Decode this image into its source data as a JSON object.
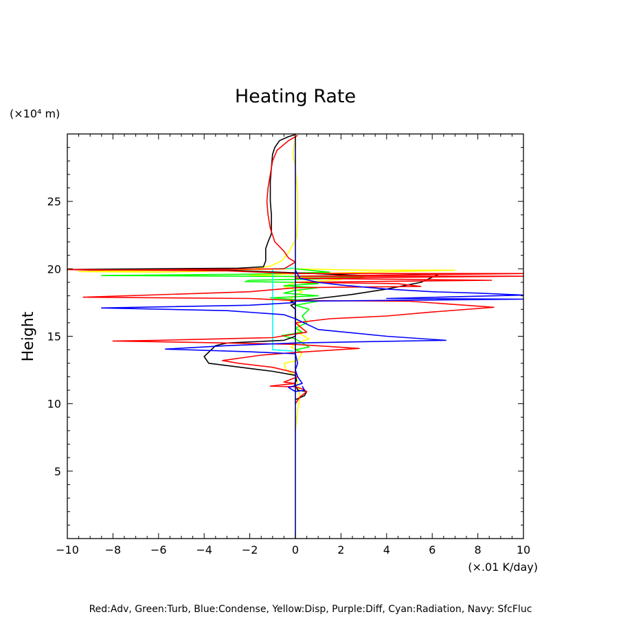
{
  "chart_data": {
    "type": "line",
    "title": "Heating Rate",
    "ylabel": "Height",
    "yunits": "(×10⁴ m)",
    "xunits": "(×.01 K/day)",
    "xlim": [
      -10,
      10
    ],
    "ylim": [
      0,
      30
    ],
    "xticks": [
      -10,
      -8,
      -6,
      -4,
      -2,
      0,
      2,
      4,
      6,
      8,
      10
    ],
    "xtick_labels": [
      "−10",
      "−8",
      "−6",
      "−4",
      "−2",
      "0",
      "2",
      "4",
      "6",
      "8",
      "10"
    ],
    "yticks": [
      5,
      10,
      15,
      20,
      25
    ],
    "ytick_labels": [
      "5",
      "10",
      "15",
      "20",
      "25"
    ],
    "grid": false,
    "legend_text": "Red:Adv, Green:Turb, Blue:Condense, Yellow:Disp, Purple:Diff, Cyan:Radiation, Navy: SfcFluc",
    "series": [
      {
        "color": "#ffff00",
        "points": [
          [
            0,
            29.9
          ],
          [
            -0.1,
            28.5
          ],
          [
            0,
            27.5
          ],
          [
            0.1,
            25.5
          ],
          [
            0.1,
            23.5
          ],
          [
            0.05,
            22.3
          ],
          [
            -0.3,
            21.2
          ],
          [
            -0.6,
            20.6
          ],
          [
            -1.1,
            20.2
          ],
          [
            -1.8,
            20.0
          ],
          [
            -3,
            19.85
          ],
          [
            -6,
            19.75
          ],
          [
            -9.5,
            19.8
          ],
          [
            -4,
            19.9
          ],
          [
            0,
            20
          ],
          [
            3,
            19.9
          ],
          [
            7,
            19.9
          ],
          [
            2,
            19.7
          ],
          [
            -2,
            19.55
          ],
          [
            0,
            19.4
          ],
          [
            2,
            19.2
          ],
          [
            0,
            19.0
          ],
          [
            -0.5,
            18.7
          ],
          [
            0.3,
            18.3
          ],
          [
            0,
            18.0
          ],
          [
            -0.3,
            17.7
          ],
          [
            0,
            17.3
          ],
          [
            0,
            16.5
          ],
          [
            0.2,
            15.7
          ],
          [
            0.1,
            15.3
          ],
          [
            0.6,
            14.8
          ],
          [
            0.1,
            14.5
          ],
          [
            -0.2,
            14.2
          ],
          [
            0.3,
            13.8
          ],
          [
            0.1,
            13.2
          ],
          [
            -0.5,
            13.0
          ],
          [
            -0.4,
            12.5
          ],
          [
            0.05,
            12.0
          ],
          [
            0.1,
            11.5
          ],
          [
            0.2,
            10.5
          ],
          [
            0.1,
            9.5
          ],
          [
            0,
            8
          ]
        ]
      },
      {
        "color": "#00ff00",
        "points": [
          [
            0,
            20.5
          ],
          [
            0,
            20
          ],
          [
            1.5,
            19.75
          ],
          [
            -2,
            19.6
          ],
          [
            -8.5,
            19.5
          ],
          [
            -2,
            19.45
          ],
          [
            3,
            19.4
          ],
          [
            1,
            19.25
          ],
          [
            -2,
            19.15
          ],
          [
            -2.2,
            19.05
          ],
          [
            0,
            19.0
          ],
          [
            1,
            18.9
          ],
          [
            -0.5,
            18.75
          ],
          [
            1,
            18.6
          ],
          [
            0,
            18.4
          ],
          [
            -0.5,
            18.2
          ],
          [
            1,
            18.0
          ],
          [
            -1.1,
            17.85
          ],
          [
            1,
            17.6
          ],
          [
            0,
            17.3
          ],
          [
            0.6,
            17.0
          ],
          [
            0.3,
            16.5
          ],
          [
            0.5,
            16.0
          ],
          [
            0,
            15.6
          ],
          [
            0.3,
            15.3
          ],
          [
            -0.6,
            15.05
          ],
          [
            0,
            14.8
          ],
          [
            0.3,
            14.5
          ],
          [
            0.6,
            14.2
          ],
          [
            0,
            14.0
          ],
          [
            0.3,
            13.8
          ]
        ]
      },
      {
        "color": "#00ffff",
        "points": [
          [
            -0.05,
            20.05
          ],
          [
            -1,
            20
          ],
          [
            -1,
            14
          ],
          [
            -0.1,
            13.9
          ]
        ]
      },
      {
        "color": "#000000",
        "points": [
          [
            0,
            29.95
          ],
          [
            -0.3,
            29.8
          ],
          [
            -0.7,
            29.5
          ],
          [
            -0.9,
            29.0
          ],
          [
            -1.0,
            28.5
          ],
          [
            -1.05,
            27.5
          ],
          [
            -1.1,
            26.5
          ],
          [
            -1.1,
            25.0
          ],
          [
            -1.05,
            24.0
          ],
          [
            -1.05,
            22.6
          ],
          [
            -1.2,
            22.0
          ],
          [
            -1.3,
            21.5
          ],
          [
            -1.3,
            20.6
          ],
          [
            -1.4,
            20.15
          ],
          [
            -2.5,
            20.05
          ],
          [
            -10,
            19.95
          ],
          [
            -3,
            19.9
          ],
          [
            0,
            19.7
          ],
          [
            3,
            19.5
          ],
          [
            6.3,
            19.6
          ],
          [
            5.5,
            19.0
          ],
          [
            4,
            18.5
          ],
          [
            2.5,
            18.1
          ],
          [
            1,
            17.8
          ],
          [
            -0.2,
            17.6
          ],
          [
            0,
            17.4
          ],
          [
            -0.2,
            17.3
          ],
          [
            0,
            17.0
          ],
          [
            0,
            16.5
          ],
          [
            0,
            16.0
          ],
          [
            0,
            15.0
          ],
          [
            -0.5,
            14.7
          ],
          [
            -3,
            14.5
          ],
          [
            -3.5,
            14.3
          ],
          [
            -4,
            13.5
          ],
          [
            -3.8,
            13.0
          ],
          [
            -1,
            12.4
          ],
          [
            0,
            12.1
          ],
          [
            0.05,
            11.7
          ],
          [
            -0.05,
            11.5
          ],
          [
            0.05,
            11.2
          ],
          [
            0.1,
            11.0
          ],
          [
            0.5,
            10.9
          ],
          [
            0.4,
            10.6
          ],
          [
            0,
            10.3
          ]
        ]
      },
      {
        "color": "#ff0000",
        "points": [
          [
            0.1,
            29.9
          ],
          [
            -0.3,
            29.5
          ],
          [
            -0.8,
            28.8
          ],
          [
            -1.0,
            28.0
          ],
          [
            -1.1,
            27.0
          ],
          [
            -1.2,
            26.0
          ],
          [
            -1.25,
            25.0
          ],
          [
            -1.2,
            24.0
          ],
          [
            -1.1,
            23.0
          ],
          [
            -0.9,
            22.0
          ],
          [
            -0.5,
            21.3
          ],
          [
            -0.3,
            20.8
          ],
          [
            0,
            20.5
          ],
          [
            -0.5,
            20.0
          ],
          [
            -9,
            19.9
          ],
          [
            -10,
            19.95
          ],
          [
            -3,
            19.85
          ],
          [
            0,
            19.65
          ],
          [
            10,
            19.65
          ],
          [
            0,
            19.45
          ],
          [
            10,
            19.45
          ],
          [
            0,
            19.3
          ],
          [
            8.6,
            19.15
          ],
          [
            0,
            19.0
          ],
          [
            4.5,
            18.9
          ],
          [
            5.5,
            18.7
          ],
          [
            0,
            18.6
          ],
          [
            -2,
            18.3
          ],
          [
            -9.3,
            17.9
          ],
          [
            -2,
            17.8
          ],
          [
            0,
            17.65
          ],
          [
            5,
            17.6
          ],
          [
            8.7,
            17.15
          ],
          [
            6,
            16.8
          ],
          [
            4,
            16.5
          ],
          [
            1.5,
            16.3
          ],
          [
            0,
            16.0
          ],
          [
            0.5,
            15.3
          ],
          [
            -1,
            14.9
          ],
          [
            -6,
            14.7
          ],
          [
            -8,
            14.65
          ],
          [
            -3,
            14.5
          ],
          [
            0,
            14.4
          ],
          [
            2.8,
            14.1
          ],
          [
            0,
            13.8
          ],
          [
            -1.5,
            13.6
          ],
          [
            -3.2,
            13.2
          ],
          [
            -2.5,
            13.0
          ],
          [
            -1,
            12.7
          ],
          [
            0,
            12.3
          ],
          [
            0.1,
            12.0
          ],
          [
            -0.5,
            11.6
          ],
          [
            0,
            11.5
          ],
          [
            -1.1,
            11.3
          ],
          [
            0,
            11.25
          ],
          [
            0.3,
            11.1
          ],
          [
            0.5,
            10.9
          ],
          [
            0.2,
            10.5
          ],
          [
            0,
            10.0
          ]
        ]
      },
      {
        "color": "#0000ff",
        "points": [
          [
            0,
            19.9
          ],
          [
            0.2,
            19.3
          ],
          [
            1,
            19.0
          ],
          [
            2,
            18.8
          ],
          [
            4,
            18.5
          ],
          [
            6,
            18.3
          ],
          [
            8,
            18.2
          ],
          [
            10,
            18.05
          ],
          [
            4,
            17.8
          ],
          [
            10,
            17.75
          ],
          [
            0,
            17.6
          ],
          [
            0,
            17.5
          ],
          [
            -2,
            17.3
          ],
          [
            -8.5,
            17.1
          ],
          [
            -3,
            16.9
          ],
          [
            -0.5,
            16.6
          ],
          [
            0,
            16.3
          ],
          [
            1,
            15.5
          ],
          [
            4,
            15.0
          ],
          [
            6.6,
            14.7
          ],
          [
            3,
            14.6
          ],
          [
            0,
            14.5
          ],
          [
            -3,
            14.3
          ],
          [
            -5.7,
            14.05
          ],
          [
            -2,
            13.85
          ],
          [
            0,
            13.7
          ],
          [
            0.1,
            13.0
          ],
          [
            0,
            12.5
          ],
          [
            0.1,
            12.0
          ],
          [
            0.3,
            11.5
          ],
          [
            -0.3,
            11.2
          ],
          [
            0,
            10.9
          ],
          [
            0.4,
            11.0
          ],
          [
            0.3,
            11.3
          ]
        ]
      },
      {
        "color": "#000080",
        "points": [
          [
            0,
            29.8
          ],
          [
            0,
            0
          ]
        ]
      }
    ]
  }
}
